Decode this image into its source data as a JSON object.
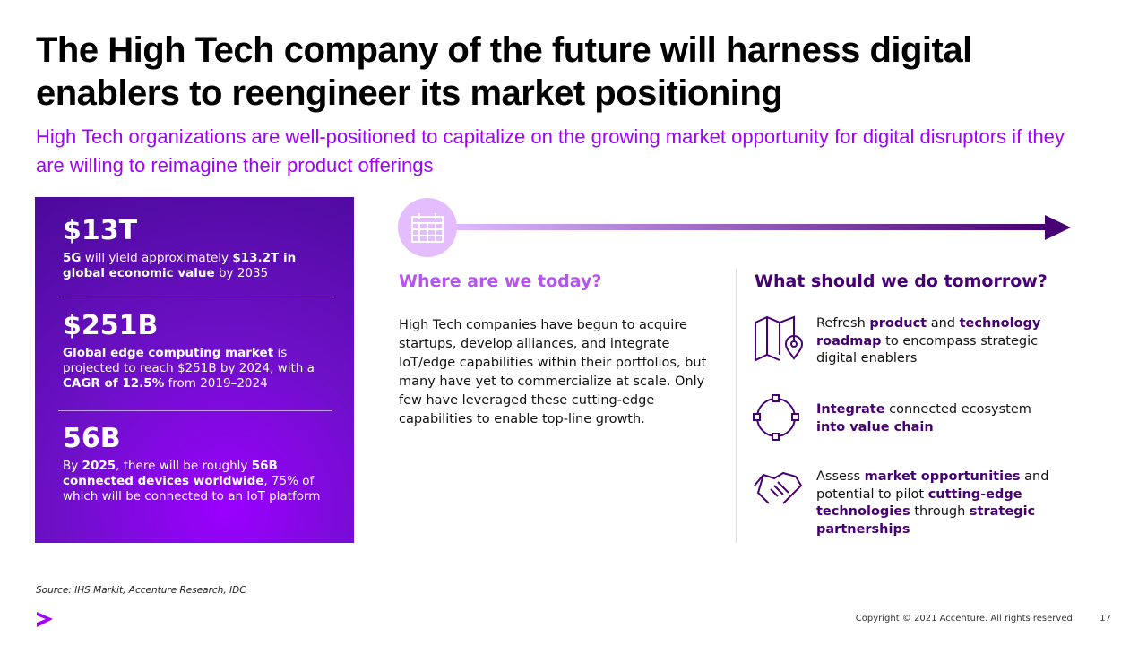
{
  "header": {
    "title": "The High Tech company of the future will harness digital enablers to reengineer its market positioning",
    "subtitle": "High Tech organizations are well-positioned to capitalize on the growing market opportunity for digital disruptors if they are willing to reimagine their product offerings"
  },
  "stats": [
    {
      "value": "$13T",
      "description": [
        {
          "text": "5G",
          "bold": true
        },
        {
          "text": " will yield approximately ",
          "bold": false
        },
        {
          "text": "$13.2T in global economic value",
          "bold": true
        },
        {
          "text": " by 2035",
          "bold": false
        }
      ]
    },
    {
      "value": "$251B",
      "description": [
        {
          "text": "Global edge computing market",
          "bold": true
        },
        {
          "text": " is projected to reach $251B by 2024, with a ",
          "bold": false
        },
        {
          "text": "CAGR of 12.5%",
          "bold": true
        },
        {
          "text": " from 2019–2024",
          "bold": false
        }
      ]
    },
    {
      "value": "56B",
      "description": [
        {
          "text": "By ",
          "bold": false
        },
        {
          "text": "2025",
          "bold": true
        },
        {
          "text": ", there will be roughly ",
          "bold": false
        },
        {
          "text": "56B connected devices worldwide",
          "bold": true
        },
        {
          "text": ", 75% of which will be connected to an IoT platform",
          "bold": false
        }
      ]
    }
  ],
  "today": {
    "heading": "Where are we today?",
    "body": "High Tech companies have begun to acquire startups, develop alliances, and integrate IoT/edge capabilities within their portfolios, but many have yet to commercialize at scale. Only few have leveraged these cutting-edge capabilities to enable top-line growth."
  },
  "tomorrow": {
    "heading": "What should we do tomorrow?",
    "items": [
      [
        {
          "text": "Refresh ",
          "bold": false
        },
        {
          "text": "product",
          "bold": true
        },
        {
          "text": " and ",
          "bold": false
        },
        {
          "text": "technology roadmap",
          "bold": true
        },
        {
          "text": " to encompass strategic digital enablers",
          "bold": false
        }
      ],
      [
        {
          "text": "Integrate",
          "bold": true
        },
        {
          "text": " connected ecosystem ",
          "bold": false
        },
        {
          "text": "into value chain",
          "bold": true
        }
      ],
      [
        {
          "text": "Assess ",
          "bold": false
        },
        {
          "text": "market opportunities",
          "bold": true
        },
        {
          "text": " and potential to pilot ",
          "bold": false
        },
        {
          "text": "cutting-edge technologies",
          "bold": true
        },
        {
          "text": " through ",
          "bold": false
        },
        {
          "text": "strategic partnerships",
          "bold": true
        }
      ]
    ]
  },
  "footer": {
    "source": "Source: IHS Markit, Accenture Research, IDC",
    "copyright": "Copyright © 2021 Accenture. All rights reserved.",
    "page": "17"
  }
}
